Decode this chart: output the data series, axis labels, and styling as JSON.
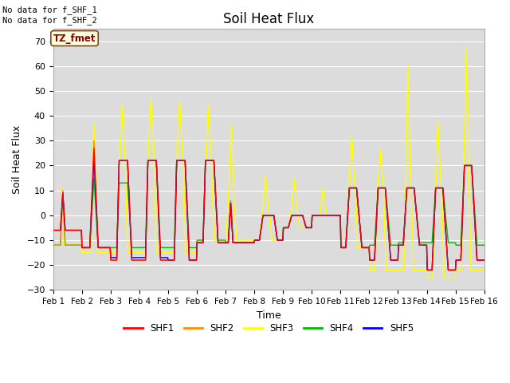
{
  "title": "Soil Heat Flux",
  "xlabel": "Time",
  "ylabel": "Soil Heat Flux",
  "ylim": [
    -30,
    75
  ],
  "yticks": [
    -30,
    -20,
    -10,
    0,
    10,
    20,
    30,
    40,
    50,
    60,
    70
  ],
  "bg_color": "#dcdcdc",
  "annotation_text": "No data for f_SHF_1\nNo data for f_SHF_2",
  "tz_label": "TZ_fmet",
  "series_colors": {
    "SHF1": "#ff0000",
    "SHF2": "#ff8c00",
    "SHF3": "#ffff00",
    "SHF4": "#00bb00",
    "SHF5": "#0000ff"
  },
  "x_tick_labels": [
    "Feb 1",
    "Feb 2",
    "Feb 3",
    "Feb 4",
    "Feb 5",
    "Feb 6",
    "Feb 7",
    "Feb 8",
    "Feb 9",
    "Feb 10",
    "Feb 11",
    "Feb 12",
    "Feb 13",
    "Feb 14",
    "Feb 15",
    "Feb 16"
  ],
  "n_days": 15,
  "ppd": 48
}
